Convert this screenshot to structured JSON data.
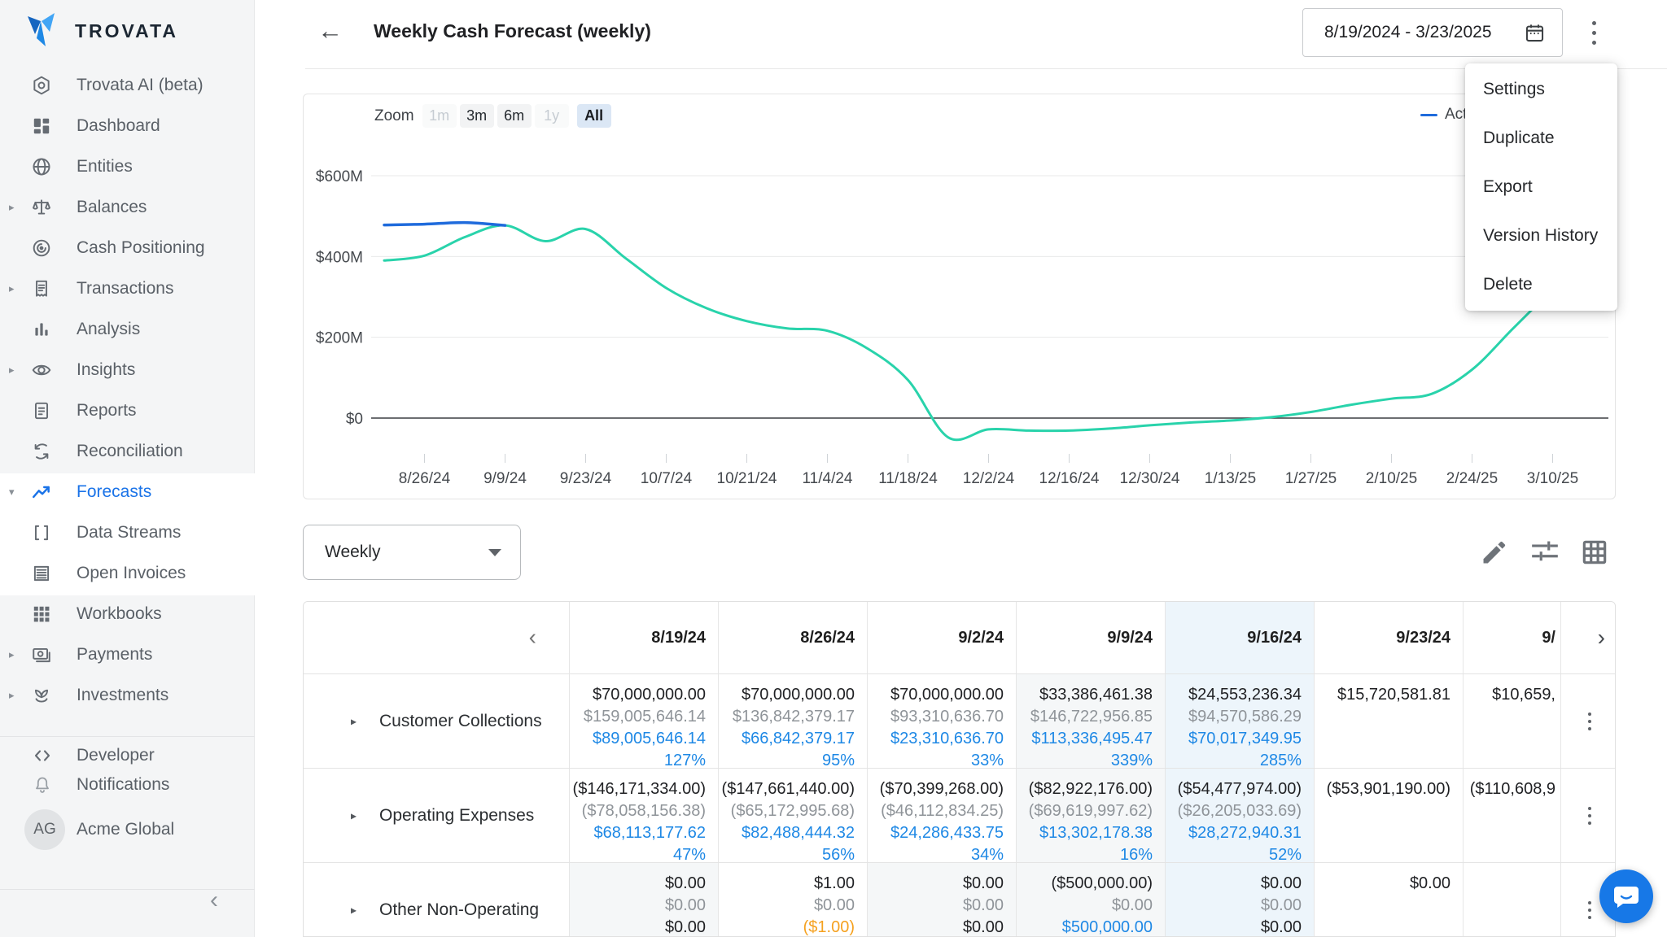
{
  "app": {
    "logo_text": "TROVATA"
  },
  "sidebar": {
    "items": [
      {
        "label": "Trovata AI (beta)",
        "icon": "ai-icon"
      },
      {
        "label": "Dashboard",
        "icon": "dashboard-icon"
      },
      {
        "label": "Entities",
        "icon": "globe-icon"
      },
      {
        "label": "Balances",
        "icon": "scales-icon",
        "caret": true
      },
      {
        "label": "Cash Positioning",
        "icon": "target-icon"
      },
      {
        "label": "Transactions",
        "icon": "receipt-icon",
        "caret": true
      },
      {
        "label": "Analysis",
        "icon": "bar-chart-icon"
      },
      {
        "label": "Insights",
        "icon": "eye-icon",
        "caret": true
      },
      {
        "label": "Reports",
        "icon": "report-icon"
      },
      {
        "label": "Reconciliation",
        "icon": "sync-icon"
      },
      {
        "label": "Forecasts",
        "icon": "trend-icon",
        "caret_open": true,
        "selected": true
      },
      {
        "label": "Data Streams",
        "icon": "brackets-icon"
      },
      {
        "label": "Open Invoices",
        "icon": "invoice-icon"
      },
      {
        "label": "Workbooks",
        "icon": "workbooks-icon"
      },
      {
        "label": "Payments",
        "icon": "payments-icon",
        "caret": true
      },
      {
        "label": "Investments",
        "icon": "investments-icon",
        "caret": true
      }
    ],
    "footer_items": [
      {
        "label": "Developer",
        "icon": "code-icon"
      },
      {
        "label": "Notifications",
        "icon": "bell-icon"
      }
    ],
    "account": {
      "initials": "AG",
      "name": "Acme Global"
    }
  },
  "header": {
    "title": "Weekly Cash Forecast (weekly)",
    "date_range": "8/19/2024 - 3/23/2025"
  },
  "context_menu": {
    "items": [
      "Settings",
      "Duplicate",
      "Export",
      "Version History",
      "Delete"
    ]
  },
  "chart_controls": {
    "zoom_label": "Zoom",
    "buttons": [
      {
        "label": "1m",
        "state": "disabled"
      },
      {
        "label": "3m",
        "state": "default"
      },
      {
        "label": "6m",
        "state": "default"
      },
      {
        "label": "1y",
        "state": "disabled"
      },
      {
        "label": "All",
        "state": "selected"
      }
    ],
    "legend": [
      {
        "label": "Actuals",
        "color": "#1f6bdc"
      }
    ]
  },
  "chart_data": {
    "type": "line",
    "y_ticks": [
      "$600M",
      "$400M",
      "$200M",
      "$0"
    ],
    "y_tick_values_m": [
      600,
      400,
      200,
      0
    ],
    "x_tick_labels": [
      "8/26/24",
      "9/9/24",
      "9/23/24",
      "10/7/24",
      "10/21/24",
      "11/4/24",
      "11/18/24",
      "12/2/24",
      "12/16/24",
      "12/30/24",
      "1/13/25",
      "1/27/25",
      "2/10/25",
      "2/24/25",
      "3/10/25"
    ],
    "ylim_m": [
      -85,
      618
    ],
    "series": [
      {
        "name": "Actuals",
        "color": "#1f6bdc",
        "start_week": 0,
        "values_m": [
          478,
          480,
          484,
          477
        ]
      },
      {
        "name": "Forecast",
        "color": "#29d3ab",
        "start_week": 0,
        "values_m": [
          390,
          402,
          448,
          477,
          438,
          468,
          395,
          322,
          272,
          240,
          222,
          216,
          172,
          94,
          -48,
          -28,
          -31,
          -31,
          -26,
          -18,
          -11,
          -6,
          2,
          15,
          33,
          48,
          60,
          120,
          220,
          320,
          425
        ]
      }
    ]
  },
  "interval_select": {
    "value": "Weekly"
  },
  "toolbar": {
    "icons": [
      "edit-icon",
      "tune-icon",
      "table-grid-icon"
    ]
  },
  "table": {
    "columns": [
      "8/19/24",
      "8/26/24",
      "9/2/24",
      "9/16/24",
      "9/23/24"
    ],
    "columns_full": [
      "8/19/24",
      "8/26/24",
      "9/2/24",
      "9/9/24",
      "9/16/24",
      "9/23/24",
      "9/"
    ],
    "column_tints": {
      "3": "#f5f7f8",
      "4": "#edf5fb"
    },
    "rows": [
      {
        "label": "Customer Collections",
        "cells": [
          {
            "lines": [
              "$70,000,000.00",
              "$159,005,646.14",
              "$89,005,646.14",
              "127%"
            ],
            "colors": [
              "dark",
              "gray",
              "blue",
              "blue"
            ]
          },
          {
            "lines": [
              "$70,000,000.00",
              "$136,842,379.17",
              "$66,842,379.17",
              "95%"
            ],
            "colors": [
              "dark",
              "gray",
              "blue",
              "blue"
            ]
          },
          {
            "lines": [
              "$70,000,000.00",
              "$93,310,636.70",
              "$23,310,636.70",
              "33%"
            ],
            "colors": [
              "dark",
              "gray",
              "blue",
              "blue"
            ]
          },
          {
            "lines": [
              "$33,386,461.38",
              "$146,722,956.85",
              "$113,336,495.47",
              "339%"
            ],
            "colors": [
              "dark",
              "gray",
              "blue",
              "blue"
            ]
          },
          {
            "lines": [
              "$24,553,236.34",
              "$94,570,586.29",
              "$70,017,349.95",
              "285%"
            ],
            "colors": [
              "dark",
              "gray",
              "blue",
              "blue"
            ]
          },
          {
            "lines": [
              "$15,720,581.81"
            ],
            "colors": [
              "dark"
            ]
          },
          {
            "lines": [
              "$10,659,"
            ],
            "colors": [
              "dark"
            ]
          }
        ]
      },
      {
        "label": "Operating Expenses",
        "cells": [
          {
            "lines": [
              "($146,171,334.00)",
              "($78,058,156.38)",
              "$68,113,177.62",
              "47%"
            ],
            "colors": [
              "dark",
              "gray",
              "blue",
              "blue"
            ]
          },
          {
            "lines": [
              "($147,661,440.00)",
              "($65,172,995.68)",
              "$82,488,444.32",
              "56%"
            ],
            "colors": [
              "dark",
              "gray",
              "blue",
              "blue"
            ]
          },
          {
            "lines": [
              "($70,399,268.00)",
              "($46,112,834.25)",
              "$24,286,433.75",
              "34%"
            ],
            "colors": [
              "dark",
              "gray",
              "blue",
              "blue"
            ]
          },
          {
            "lines": [
              "($82,922,176.00)",
              "($69,619,997.62)",
              "$13,302,178.38",
              "16%"
            ],
            "colors": [
              "dark",
              "gray",
              "blue",
              "blue"
            ]
          },
          {
            "lines": [
              "($54,477,974.00)",
              "($26,205,033.69)",
              "$28,272,940.31",
              "52%"
            ],
            "colors": [
              "dark",
              "gray",
              "blue",
              "blue"
            ]
          },
          {
            "lines": [
              "($53,901,190.00)"
            ],
            "colors": [
              "dark"
            ]
          },
          {
            "lines": [
              "($110,608,9"
            ],
            "colors": [
              "dark"
            ]
          }
        ]
      },
      {
        "label": "Other Non-Operating",
        "cells": [
          {
            "lines": [
              "$0.00",
              "$0.00",
              "$0.00"
            ],
            "colors": [
              "dark",
              "gray",
              "dark"
            ],
            "bg": "#f5f7f8"
          },
          {
            "lines": [
              "$1.00",
              "$0.00",
              "($1.00)"
            ],
            "colors": [
              "dark",
              "gray",
              "orange"
            ]
          },
          {
            "lines": [
              "$0.00",
              "$0.00",
              "$0.00"
            ],
            "colors": [
              "dark",
              "gray",
              "dark"
            ],
            "bg": "#f5f7f8"
          },
          {
            "lines": [
              "($500,000.00)",
              "$0.00",
              "$500,000.00"
            ],
            "colors": [
              "dark",
              "gray",
              "blue"
            ]
          },
          {
            "lines": [
              "$0.00",
              "$0.00",
              "$0.00"
            ],
            "colors": [
              "dark",
              "gray",
              "dark"
            ]
          },
          {
            "lines": [
              "$0.00"
            ],
            "colors": [
              "dark"
            ]
          },
          {
            "lines": [
              ""
            ],
            "colors": [
              "dark"
            ]
          }
        ]
      }
    ]
  }
}
